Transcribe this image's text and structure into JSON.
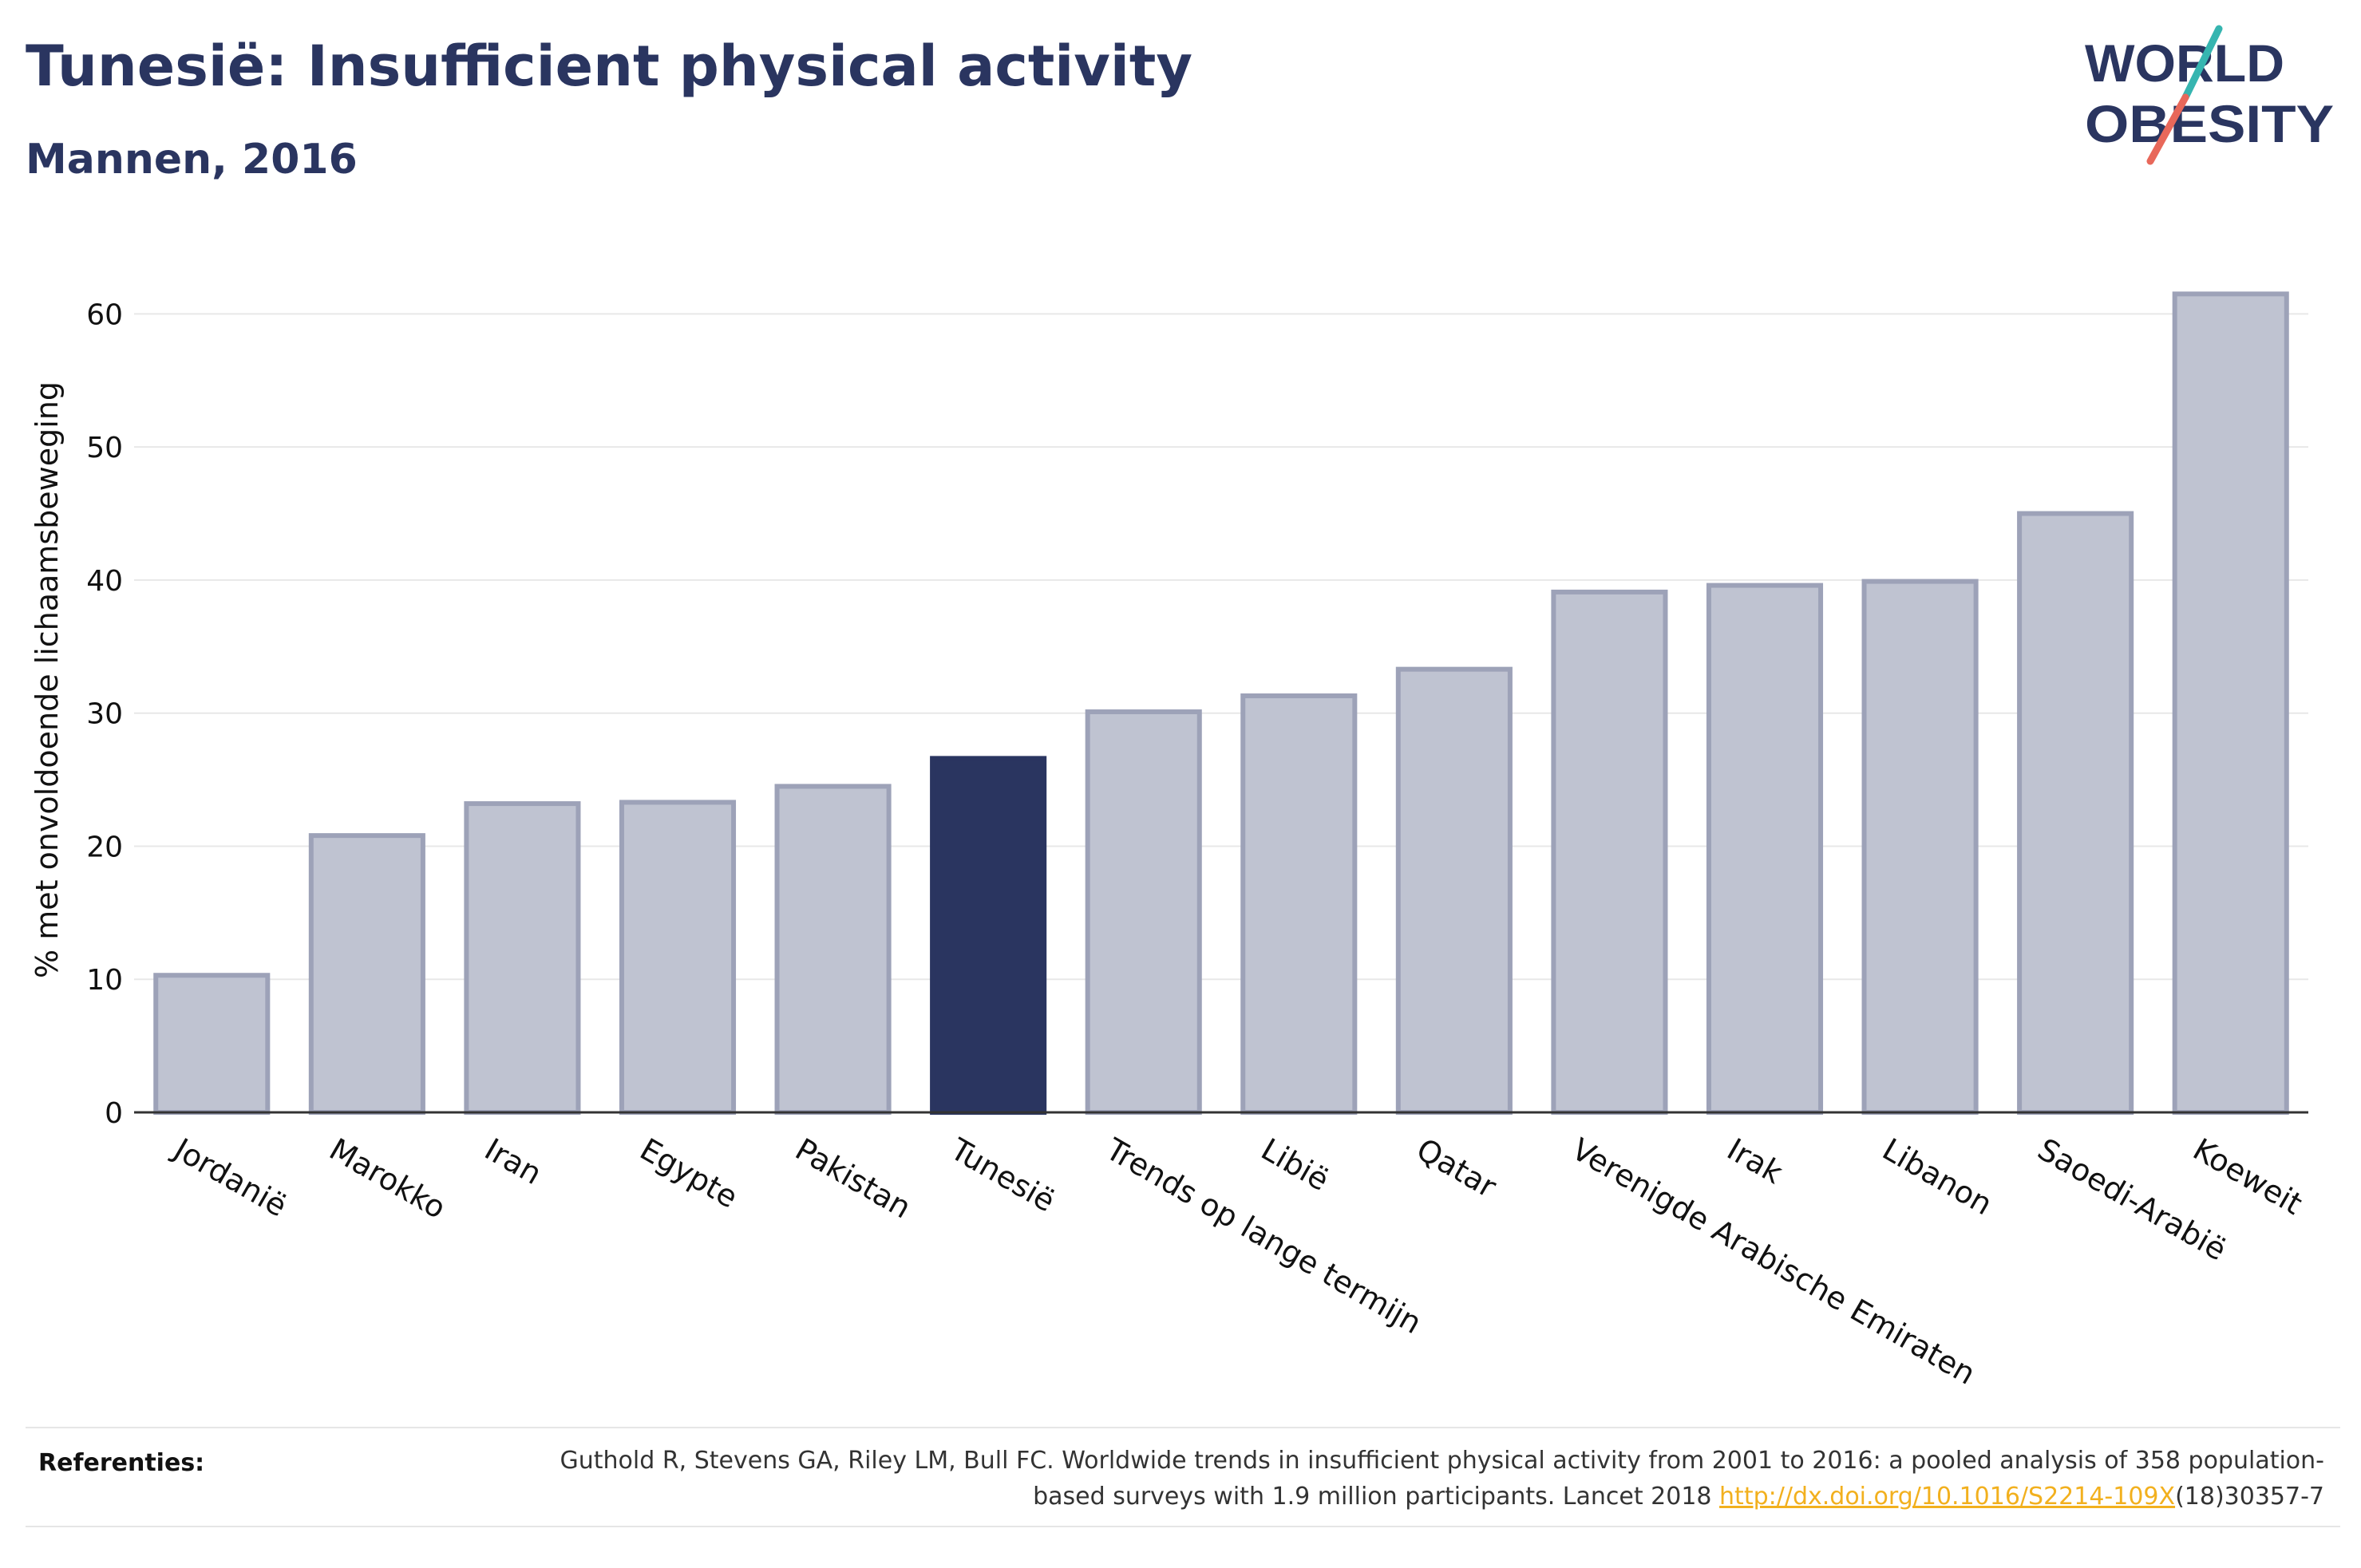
{
  "header": {
    "title": "Tunesië: Insufficient physical activity",
    "subtitle": "Mannen, 2016"
  },
  "logo": {
    "line1": "WORLD",
    "line2": "OBESITY",
    "colors": {
      "text": "#2a3560",
      "slash_top": "#36b5b0",
      "slash_bottom": "#e8685a"
    }
  },
  "chart_data": {
    "type": "bar",
    "ylabel": "% met onvoldoende lichaamsbeweging",
    "ylim": [
      0,
      65
    ],
    "yticks": [
      0,
      10,
      20,
      30,
      40,
      50,
      60
    ],
    "grid": true,
    "highlight": "Tunesië",
    "colors": {
      "bar": "#bfc3d1",
      "bar_edge": "#9da2b8",
      "highlight": "#2a3560"
    },
    "categories": [
      "Jordanië",
      "Marokko",
      "Iran",
      "Egypte",
      "Pakistan",
      "Tunesië",
      "Trends op lange termijn",
      "Libië",
      "Qatar",
      "Verenigde Arabische Emiraten",
      "Irak",
      "Libanon",
      "Saoedi-Arabië",
      "Koeweit"
    ],
    "values": [
      10.3,
      20.8,
      23.2,
      23.3,
      24.5,
      26.6,
      30.1,
      31.3,
      33.3,
      39.1,
      39.6,
      39.9,
      45.0,
      61.5
    ]
  },
  "references": {
    "label": "Referenties:",
    "text_before": "Guthold R, Stevens GA, Riley LM, Bull FC. Worldwide trends in insufficient physical activity from 2001 to 2016: a pooled analysis of 358 population-based surveys with 1.9 million participants. Lancet 2018 ",
    "link": "http://dx.doi.org/10.1016/S2214-109X",
    "text_after": "(18)30357-7"
  }
}
